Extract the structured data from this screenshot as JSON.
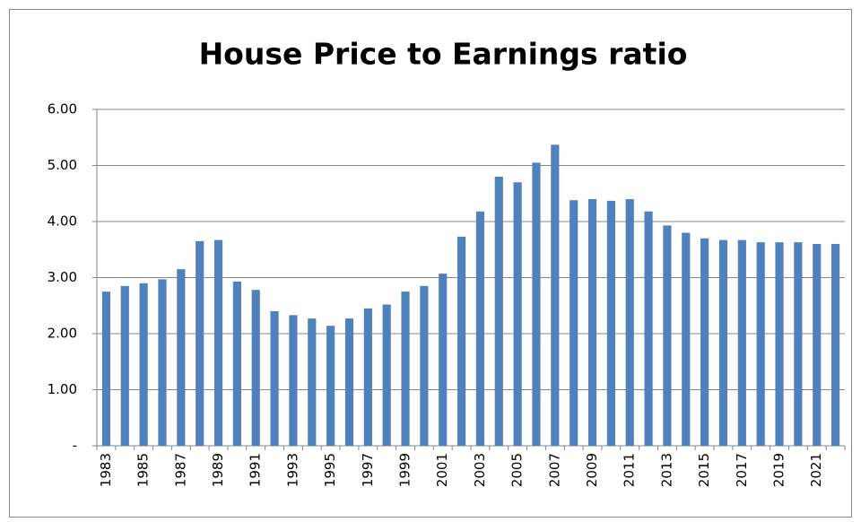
{
  "chart_data": {
    "type": "bar",
    "title": "House Price to Earnings ratio",
    "categories": [
      "1983",
      null,
      "1985",
      null,
      "1987",
      null,
      "1989",
      null,
      "1991",
      null,
      "1993",
      null,
      "1995",
      null,
      "1997",
      null,
      "1999",
      null,
      "2001",
      null,
      "2003",
      null,
      "2005",
      null,
      "2007",
      null,
      "2009",
      null,
      "2011",
      null,
      "2013",
      null,
      "2015",
      null,
      "2017",
      null,
      "2019",
      null,
      "2021",
      null
    ],
    "values": [
      2.75,
      2.85,
      2.9,
      2.97,
      3.15,
      3.65,
      3.67,
      2.93,
      2.78,
      2.4,
      2.33,
      2.27,
      2.14,
      2.27,
      2.45,
      2.52,
      2.75,
      2.85,
      3.07,
      3.73,
      4.18,
      4.8,
      4.7,
      5.05,
      5.37,
      4.38,
      4.4,
      4.37,
      4.4,
      4.18,
      3.93,
      3.8,
      3.7,
      3.67,
      3.67,
      3.63,
      3.63,
      3.63,
      3.6,
      3.6
    ],
    "color": "#4f81bd",
    "ylim": [
      0,
      6
    ],
    "yticks": [
      {
        "value": 0,
        "label": "-"
      },
      {
        "value": 1,
        "label": "1.00"
      },
      {
        "value": 2,
        "label": "2.00"
      },
      {
        "value": 3,
        "label": "3.00"
      },
      {
        "value": 4,
        "label": "4.00"
      },
      {
        "value": 5,
        "label": "5.00"
      },
      {
        "value": 6,
        "label": "6.00"
      }
    ],
    "grid": true
  }
}
